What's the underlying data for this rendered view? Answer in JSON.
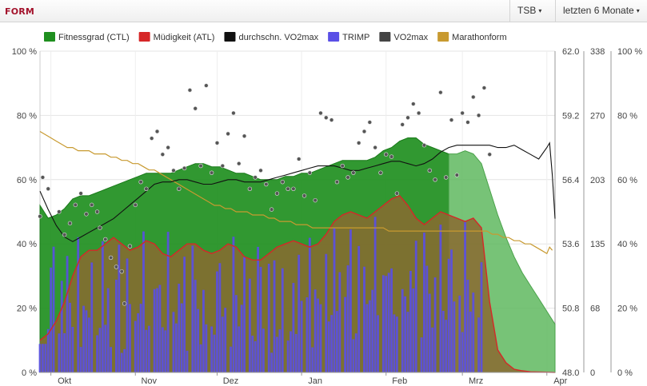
{
  "header": {
    "title": "FORM",
    "metric_select": "TSB",
    "range_select": "letzten 6 Monate"
  },
  "colors": {
    "title": "#a3122b",
    "ctl": "#1f8f1f",
    "atl": "#d62728",
    "vo2_avg": "#111111",
    "trimp": "#5a4fe6",
    "vo2": "#444444",
    "marathon": "#c89a30",
    "fatigue_fill": "#8a6a30"
  },
  "icons": {
    "dropdown": "chevron-down-icon"
  },
  "chart_data": {
    "type": "area",
    "legend": [
      {
        "key": "ctl",
        "label": "Fitnessgrad (CTL)"
      },
      {
        "key": "atl",
        "label": "Müdigkeit (ATL)"
      },
      {
        "key": "vo2_avg",
        "label": "durchschn. VO2max"
      },
      {
        "key": "trimp",
        "label": "TRIMP"
      },
      {
        "key": "vo2",
        "label": "VO2max"
      },
      {
        "key": "marathon",
        "label": "Marathonform"
      }
    ],
    "legend_position": "top",
    "x_months": [
      "Okt",
      "Nov",
      "Dez",
      "Jan",
      "Feb",
      "Mrz",
      "Apr"
    ],
    "x_range_days": [
      0,
      189
    ],
    "month_start_days": [
      4,
      35,
      65,
      96,
      127,
      155,
      186
    ],
    "forecast_start_day": 150,
    "y_left": {
      "ticks": [
        "0 %",
        "20 %",
        "40 %",
        "60 %",
        "80 %",
        "100 %"
      ],
      "range": [
        0,
        100
      ]
    },
    "y_vo2": {
      "ticks": [
        "48.0",
        "50.8",
        "53.6",
        "56.4",
        "59.2",
        "62.0"
      ],
      "range": [
        48.0,
        62.0
      ]
    },
    "y_trimp": {
      "ticks": [
        "0",
        "68",
        "135",
        "203",
        "270",
        "338"
      ],
      "range": [
        0,
        338
      ]
    },
    "y_right": {
      "ticks": [
        "0 %",
        "20 %",
        "40 %",
        "60 %",
        "80 %",
        "100 %"
      ],
      "range": [
        0,
        100
      ]
    },
    "grid": true,
    "ctl": [
      [
        0,
        52
      ],
      [
        3,
        48
      ],
      [
        6,
        49
      ],
      [
        9,
        51
      ],
      [
        12,
        54
      ],
      [
        15,
        55
      ],
      [
        18,
        55
      ],
      [
        21,
        56
      ],
      [
        24,
        57
      ],
      [
        27,
        58
      ],
      [
        30,
        59
      ],
      [
        33,
        60
      ],
      [
        36,
        61
      ],
      [
        39,
        62
      ],
      [
        42,
        62
      ],
      [
        45,
        62
      ],
      [
        48,
        62
      ],
      [
        51,
        63
      ],
      [
        54,
        64
      ],
      [
        57,
        65
      ],
      [
        60,
        65
      ],
      [
        63,
        64
      ],
      [
        66,
        64
      ],
      [
        69,
        63
      ],
      [
        72,
        62
      ],
      [
        75,
        62
      ],
      [
        78,
        61
      ],
      [
        81,
        60
      ],
      [
        84,
        60
      ],
      [
        87,
        60
      ],
      [
        90,
        61
      ],
      [
        93,
        61
      ],
      [
        96,
        62
      ],
      [
        99,
        62
      ],
      [
        102,
        63
      ],
      [
        105,
        64
      ],
      [
        108,
        65
      ],
      [
        111,
        66
      ],
      [
        114,
        66
      ],
      [
        117,
        66
      ],
      [
        120,
        66
      ],
      [
        123,
        67
      ],
      [
        126,
        69
      ],
      [
        129,
        70
      ],
      [
        132,
        72
      ],
      [
        135,
        73
      ],
      [
        138,
        73
      ],
      [
        141,
        71
      ],
      [
        144,
        70
      ],
      [
        147,
        69
      ],
      [
        150,
        68
      ],
      [
        153,
        68
      ],
      [
        156,
        69
      ],
      [
        159,
        68
      ],
      [
        162,
        65
      ],
      [
        165,
        57
      ],
      [
        168,
        49
      ],
      [
        171,
        42
      ],
      [
        174,
        36
      ],
      [
        177,
        31
      ],
      [
        180,
        27
      ],
      [
        183,
        23
      ],
      [
        186,
        19
      ],
      [
        189,
        15
      ]
    ],
    "atl": [
      [
        0,
        10
      ],
      [
        3,
        12
      ],
      [
        6,
        16
      ],
      [
        9,
        22
      ],
      [
        12,
        30
      ],
      [
        15,
        36
      ],
      [
        18,
        38
      ],
      [
        21,
        38
      ],
      [
        24,
        40
      ],
      [
        27,
        42
      ],
      [
        30,
        40
      ],
      [
        33,
        38
      ],
      [
        36,
        39
      ],
      [
        39,
        41
      ],
      [
        42,
        40
      ],
      [
        45,
        37
      ],
      [
        48,
        36
      ],
      [
        51,
        38
      ],
      [
        54,
        40
      ],
      [
        57,
        40
      ],
      [
        60,
        38
      ],
      [
        63,
        37
      ],
      [
        66,
        38
      ],
      [
        69,
        40
      ],
      [
        72,
        39
      ],
      [
        75,
        36
      ],
      [
        78,
        35
      ],
      [
        81,
        35
      ],
      [
        84,
        37
      ],
      [
        87,
        39
      ],
      [
        90,
        40
      ],
      [
        93,
        41
      ],
      [
        96,
        40
      ],
      [
        99,
        39
      ],
      [
        102,
        40
      ],
      [
        105,
        43
      ],
      [
        108,
        47
      ],
      [
        111,
        49
      ],
      [
        114,
        50
      ],
      [
        117,
        49
      ],
      [
        120,
        48
      ],
      [
        123,
        50
      ],
      [
        126,
        52
      ],
      [
        129,
        54
      ],
      [
        132,
        55
      ],
      [
        135,
        52
      ],
      [
        138,
        48
      ],
      [
        141,
        46
      ],
      [
        144,
        48
      ],
      [
        147,
        50
      ],
      [
        150,
        49
      ],
      [
        153,
        48
      ],
      [
        156,
        47
      ],
      [
        159,
        48
      ],
      [
        162,
        45
      ],
      [
        165,
        22
      ],
      [
        168,
        7
      ],
      [
        171,
        3
      ],
      [
        174,
        1
      ],
      [
        177,
        0.5
      ],
      [
        180,
        0.2
      ],
      [
        189,
        0
      ]
    ],
    "trimp_range": [
      0,
      162
    ],
    "vo2_avg": [
      [
        0,
        55.9
      ],
      [
        3,
        55.1
      ],
      [
        6,
        54.4
      ],
      [
        9,
        53.9
      ],
      [
        12,
        53.7
      ],
      [
        15,
        53.9
      ],
      [
        18,
        54.1
      ],
      [
        21,
        54.3
      ],
      [
        24,
        54.5
      ],
      [
        27,
        54.7
      ],
      [
        30,
        55.0
      ],
      [
        33,
        55.3
      ],
      [
        36,
        55.6
      ],
      [
        39,
        55.9
      ],
      [
        42,
        56.2
      ],
      [
        45,
        56.3
      ],
      [
        48,
        56.3
      ],
      [
        51,
        56.4
      ],
      [
        54,
        56.4
      ],
      [
        57,
        56.3
      ],
      [
        60,
        56.2
      ],
      [
        63,
        56.2
      ],
      [
        66,
        56.3
      ],
      [
        69,
        56.4
      ],
      [
        72,
        56.4
      ],
      [
        75,
        56.3
      ],
      [
        78,
        56.3
      ],
      [
        81,
        56.3
      ],
      [
        84,
        56.4
      ],
      [
        87,
        56.5
      ],
      [
        90,
        56.6
      ],
      [
        93,
        56.7
      ],
      [
        96,
        56.8
      ],
      [
        99,
        56.9
      ],
      [
        102,
        57.0
      ],
      [
        105,
        57.0
      ],
      [
        108,
        57.0
      ],
      [
        111,
        56.9
      ],
      [
        114,
        56.8
      ],
      [
        117,
        56.8
      ],
      [
        120,
        56.9
      ],
      [
        123,
        57.0
      ],
      [
        126,
        57.1
      ],
      [
        129,
        57.2
      ],
      [
        132,
        57.2
      ],
      [
        135,
        57.1
      ],
      [
        138,
        57.0
      ],
      [
        141,
        57.1
      ],
      [
        144,
        57.3
      ],
      [
        147,
        57.6
      ],
      [
        150,
        57.8
      ],
      [
        153,
        57.9
      ],
      [
        156,
        57.9
      ],
      [
        159,
        57.9
      ],
      [
        162,
        57.9
      ],
      [
        165,
        57.9
      ],
      [
        168,
        57.8
      ],
      [
        171,
        57.8
      ],
      [
        174,
        57.9
      ],
      [
        177,
        57.7
      ],
      [
        180,
        57.5
      ],
      [
        183,
        57.3
      ],
      [
        186,
        57.8
      ],
      [
        187,
        58.0
      ],
      [
        188,
        56.6
      ],
      [
        189,
        54.7
      ]
    ],
    "vo2": [
      [
        0,
        54.8
      ],
      [
        1,
        56.5
      ],
      [
        3,
        56.0
      ],
      [
        7,
        55.0
      ],
      [
        9,
        54.0
      ],
      [
        11,
        54.5
      ],
      [
        13,
        55.3
      ],
      [
        15,
        55.8
      ],
      [
        17,
        54.9
      ],
      [
        19,
        55.3
      ],
      [
        21,
        55.0
      ],
      [
        22,
        54.3
      ],
      [
        24,
        53.8
      ],
      [
        26,
        53.0
      ],
      [
        28,
        52.6
      ],
      [
        30,
        52.4
      ],
      [
        31,
        51.0
      ],
      [
        33,
        53.5
      ],
      [
        35,
        55.3
      ],
      [
        37,
        56.3
      ],
      [
        39,
        56.0
      ],
      [
        41,
        58.2
      ],
      [
        43,
        58.5
      ],
      [
        45,
        57.5
      ],
      [
        47,
        57.8
      ],
      [
        49,
        56.8
      ],
      [
        51,
        56.0
      ],
      [
        53,
        56.9
      ],
      [
        55,
        60.3
      ],
      [
        57,
        59.5
      ],
      [
        59,
        57.0
      ],
      [
        61,
        60.5
      ],
      [
        63,
        56.7
      ],
      [
        65,
        58.0
      ],
      [
        67,
        57.0
      ],
      [
        69,
        58.4
      ],
      [
        71,
        59.3
      ],
      [
        73,
        57.1
      ],
      [
        75,
        58.3
      ],
      [
        77,
        56.0
      ],
      [
        79,
        56.5
      ],
      [
        81,
        56.8
      ],
      [
        83,
        56.2
      ],
      [
        85,
        55.1
      ],
      [
        87,
        55.8
      ],
      [
        89,
        56.3
      ],
      [
        91,
        56.0
      ],
      [
        93,
        56.0
      ],
      [
        95,
        57.3
      ],
      [
        97,
        55.7
      ],
      [
        99,
        56.7
      ],
      [
        101,
        55.5
      ],
      [
        103,
        59.3
      ],
      [
        105,
        59.1
      ],
      [
        107,
        59.0
      ],
      [
        109,
        56.3
      ],
      [
        111,
        57.0
      ],
      [
        113,
        56.5
      ],
      [
        115,
        56.7
      ],
      [
        117,
        58.0
      ],
      [
        119,
        58.5
      ],
      [
        121,
        58.9
      ],
      [
        123,
        57.8
      ],
      [
        125,
        56.7
      ],
      [
        127,
        57.5
      ],
      [
        129,
        57.4
      ],
      [
        131,
        55.8
      ],
      [
        133,
        58.8
      ],
      [
        135,
        59.1
      ],
      [
        137,
        59.7
      ],
      [
        139,
        59.3
      ],
      [
        141,
        57.9
      ],
      [
        143,
        56.8
      ],
      [
        145,
        56.4
      ],
      [
        147,
        60.2
      ],
      [
        149,
        56.5
      ],
      [
        151,
        59.0
      ],
      [
        153,
        56.6
      ],
      [
        155,
        59.3
      ],
      [
        157,
        58.9
      ],
      [
        159,
        60.0
      ],
      [
        161,
        59.2
      ],
      [
        163,
        60.4
      ],
      [
        165,
        57.5
      ]
    ],
    "marathon": [
      [
        0,
        75
      ],
      [
        2,
        74
      ],
      [
        4,
        73
      ],
      [
        6,
        72
      ],
      [
        8,
        71
      ],
      [
        10,
        70
      ],
      [
        12,
        70
      ],
      [
        14,
        69
      ],
      [
        16,
        69
      ],
      [
        18,
        69
      ],
      [
        20,
        68
      ],
      [
        22,
        68
      ],
      [
        24,
        68
      ],
      [
        26,
        67
      ],
      [
        28,
        67
      ],
      [
        30,
        66
      ],
      [
        32,
        66
      ],
      [
        34,
        65
      ],
      [
        36,
        65
      ],
      [
        38,
        64
      ],
      [
        40,
        63
      ],
      [
        42,
        63
      ],
      [
        44,
        62
      ],
      [
        46,
        61
      ],
      [
        48,
        60
      ],
      [
        50,
        59
      ],
      [
        52,
        58
      ],
      [
        54,
        57
      ],
      [
        56,
        56
      ],
      [
        58,
        55
      ],
      [
        60,
        54
      ],
      [
        62,
        53
      ],
      [
        64,
        52
      ],
      [
        66,
        52
      ],
      [
        68,
        51
      ],
      [
        70,
        51
      ],
      [
        72,
        50
      ],
      [
        74,
        50
      ],
      [
        76,
        50
      ],
      [
        78,
        49
      ],
      [
        80,
        49
      ],
      [
        82,
        49
      ],
      [
        84,
        48
      ],
      [
        86,
        48
      ],
      [
        88,
        47
      ],
      [
        90,
        47
      ],
      [
        92,
        47
      ],
      [
        94,
        46
      ],
      [
        96,
        46
      ],
      [
        98,
        46
      ],
      [
        100,
        45
      ],
      [
        102,
        45
      ],
      [
        104,
        45
      ],
      [
        106,
        45
      ],
      [
        108,
        45
      ],
      [
        110,
        45
      ],
      [
        112,
        45
      ],
      [
        114,
        45
      ],
      [
        116,
        45
      ],
      [
        118,
        45
      ],
      [
        120,
        45
      ],
      [
        122,
        45
      ],
      [
        124,
        45
      ],
      [
        126,
        45
      ],
      [
        128,
        44
      ],
      [
        130,
        44
      ],
      [
        132,
        44
      ],
      [
        134,
        44
      ],
      [
        136,
        44
      ],
      [
        138,
        44
      ],
      [
        140,
        44
      ],
      [
        142,
        44
      ],
      [
        144,
        44
      ],
      [
        146,
        44
      ],
      [
        148,
        44
      ],
      [
        150,
        44
      ],
      [
        152,
        44
      ],
      [
        154,
        44
      ],
      [
        156,
        44
      ],
      [
        158,
        44
      ],
      [
        160,
        44
      ],
      [
        162,
        44
      ],
      [
        164,
        44
      ],
      [
        166,
        43
      ],
      [
        168,
        43
      ],
      [
        170,
        42
      ],
      [
        172,
        42
      ],
      [
        174,
        41
      ],
      [
        176,
        41
      ],
      [
        178,
        40
      ],
      [
        180,
        40
      ],
      [
        182,
        39
      ],
      [
        184,
        38
      ],
      [
        186,
        37
      ],
      [
        187,
        39
      ],
      [
        188,
        38
      ]
    ]
  }
}
